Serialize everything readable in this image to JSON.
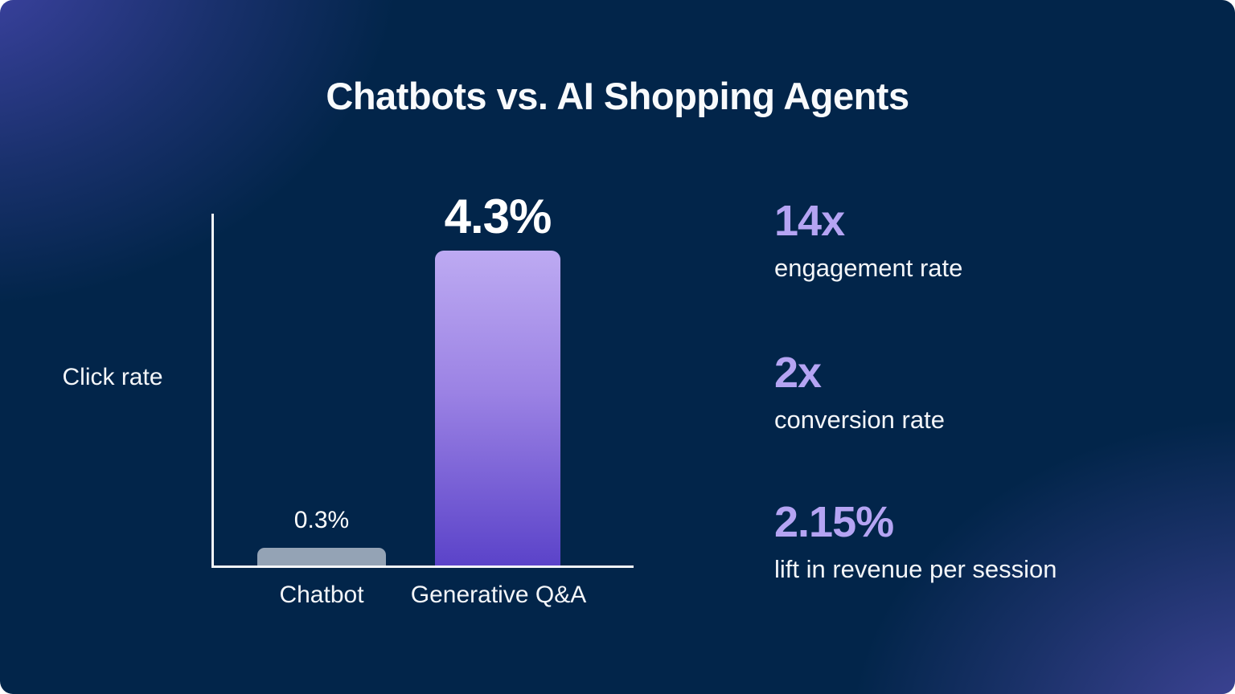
{
  "page": {
    "title": "Chatbots vs. AI Shopping Agents"
  },
  "chart": {
    "y_axis_label": "Click rate",
    "bars": [
      {
        "label": "Chatbot",
        "value_label": "0.3%"
      },
      {
        "label": "Generative Q&A",
        "value_label": "4.3%"
      }
    ]
  },
  "stats": {
    "items": [
      {
        "value": "14x",
        "label": "engagement rate"
      },
      {
        "value": "2x",
        "label": "conversion rate"
      },
      {
        "value": "2.15%",
        "label": "lift in revenue per session"
      }
    ]
  },
  "colors": {
    "background_base": "#02254a",
    "background_glow_top_left": "#34318a",
    "background_glow_bottom_right": "#53459c",
    "axis": "#f4f6f9",
    "text_primary": "#ffffff",
    "stat_accent": "#b5a4f3",
    "bar_chatbot": "#94a3b5",
    "bar_genqa_gradient_top": "#bdaaf2",
    "bar_genqa_gradient_bottom": "#5b43c9"
  },
  "chart_data": {
    "type": "bar",
    "title": "Chatbots vs. AI Shopping Agents",
    "categories": [
      "Chatbot",
      "Generative Q&A"
    ],
    "values": [
      0.3,
      4.3
    ],
    "data_labels": [
      "0.3%",
      "4.3%"
    ],
    "xlabel": "",
    "ylabel": "Click rate",
    "ylim": [
      0,
      4.75
    ],
    "grid": false,
    "legend": false,
    "annotations": [
      "14x engagement rate",
      "2x conversion rate",
      "2.15% lift in revenue per session"
    ]
  }
}
